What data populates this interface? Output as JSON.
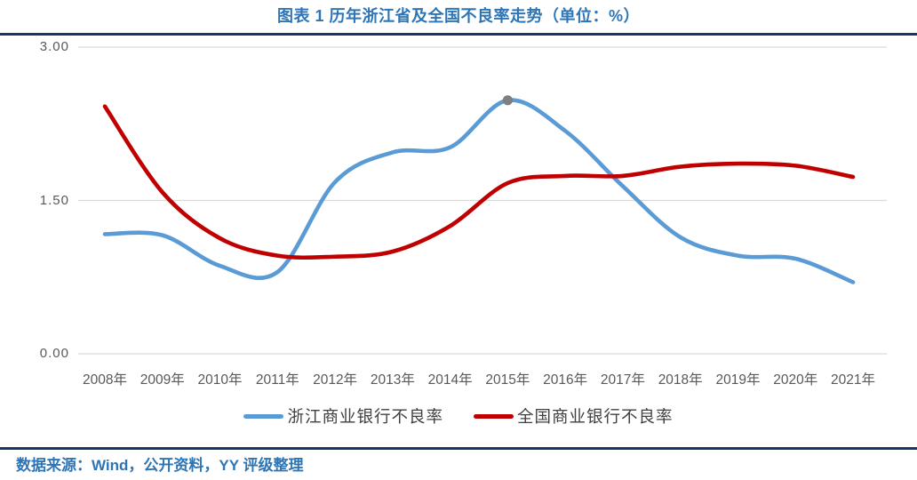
{
  "header": {
    "title": "图表 1 历年浙江省及全国不良率走势（单位：%）"
  },
  "footer": {
    "source": "数据来源：Wind，公开资料，YY 评级整理"
  },
  "colors": {
    "accent_blue": "#2E75B6",
    "divider_navy": "#17375E",
    "gridline": "#D9D9D9",
    "tick_text": "#595959",
    "legend_text": "#404040",
    "series_blue": "#5B9BD5",
    "series_red": "#C00000",
    "peak_marker_gray": "#7F7F7F"
  },
  "chart_data": {
    "type": "line",
    "title": "图表 1 历年浙江省及全国不良率走势（单位：%）",
    "unit": "%",
    "categories": [
      "2008年",
      "2009年",
      "2010年",
      "2011年",
      "2012年",
      "2013年",
      "2014年",
      "2015年",
      "2016年",
      "2017年",
      "2018年",
      "2019年",
      "2020年",
      "2021年"
    ],
    "series": [
      {
        "name": "浙江商业银行不良率",
        "color": "#5B9BD5",
        "smooth": true,
        "values": [
          1.17,
          1.16,
          0.86,
          0.8,
          1.68,
          1.97,
          2.02,
          2.48,
          2.18,
          1.64,
          1.14,
          0.96,
          0.93,
          0.7
        ],
        "marker": {
          "category": "2015年",
          "index": 7,
          "color": "#7F7F7F"
        }
      },
      {
        "name": "全国商业银行不良率",
        "color": "#C00000",
        "smooth": true,
        "values": [
          2.42,
          1.58,
          1.13,
          0.96,
          0.95,
          1.0,
          1.25,
          1.67,
          1.74,
          1.74,
          1.83,
          1.86,
          1.84,
          1.73
        ]
      }
    ],
    "ylim": [
      0.0,
      3.0
    ],
    "yticks": [
      {
        "value": 0.0,
        "label": "0.00"
      },
      {
        "value": 1.5,
        "label": "1.50"
      },
      {
        "value": 3.0,
        "label": "3.00"
      }
    ],
    "grid": "horizontal-only",
    "legend_position": "bottom",
    "x_axis_position": "bottom"
  }
}
